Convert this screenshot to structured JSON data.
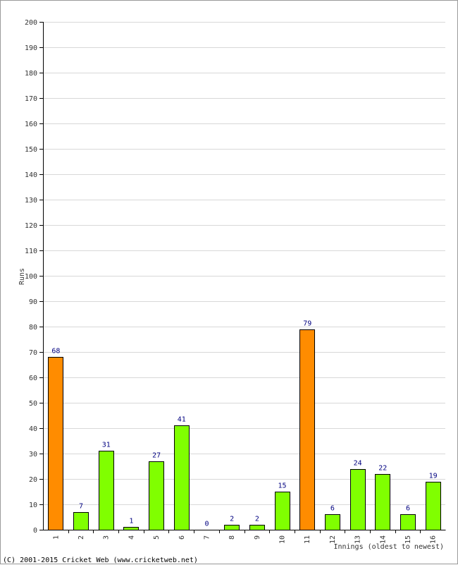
{
  "chart_data": {
    "type": "bar",
    "xlabel": "Innings (oldest to newest)",
    "ylabel": "Runs",
    "ylim": [
      0,
      200
    ],
    "ytick_step": 10,
    "grid": true,
    "categories": [
      "1",
      "2",
      "3",
      "4",
      "5",
      "6",
      "7",
      "8",
      "9",
      "10",
      "11",
      "12",
      "13",
      "14",
      "15",
      "16"
    ],
    "values": [
      68,
      7,
      31,
      1,
      27,
      41,
      0,
      2,
      2,
      15,
      79,
      6,
      24,
      22,
      6,
      19
    ],
    "bar_colors": [
      "#ff8c00",
      "#80ff00",
      "#80ff00",
      "#80ff00",
      "#80ff00",
      "#80ff00",
      "#80ff00",
      "#80ff00",
      "#80ff00",
      "#80ff00",
      "#ff8c00",
      "#80ff00",
      "#80ff00",
      "#80ff00",
      "#80ff00",
      "#80ff00"
    ],
    "colors": {
      "highlight": "#ff8c00",
      "normal": "#80ff00",
      "label": "#000080",
      "grid": "#d8d8d8"
    }
  },
  "footer": "(C) 2001-2015 Cricket Web (www.cricketweb.net)"
}
